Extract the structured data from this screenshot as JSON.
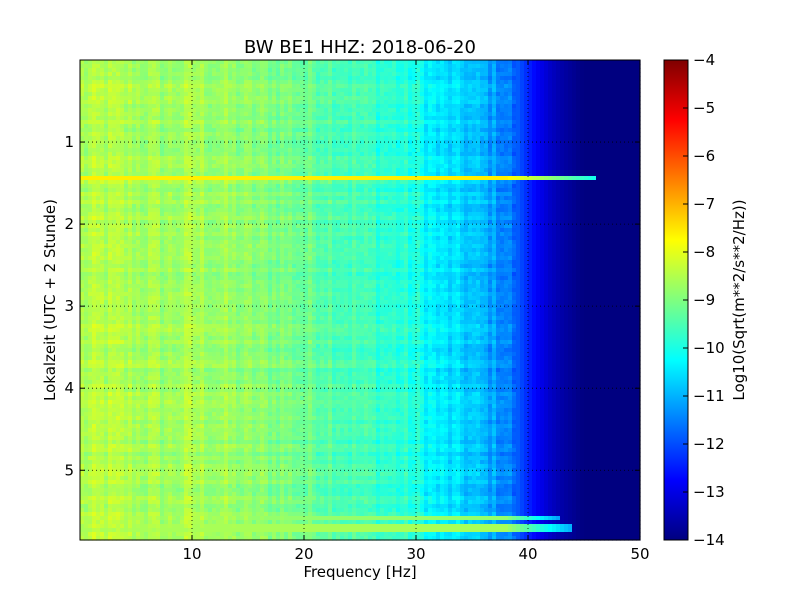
{
  "chart_data": {
    "type": "heatmap",
    "title": "BW BE1 HHZ: 2018-06-20",
    "xlabel": "Frequency [Hz]",
    "ylabel": "Lokalzeit (UTC + 2 Stunde)",
    "xlim": [
      0,
      50
    ],
    "ylim": [
      5.85,
      0.0
    ],
    "x_ticks": [
      10,
      20,
      30,
      40,
      50
    ],
    "x_tick_labels": [
      "10",
      "20",
      "30",
      "40",
      "50"
    ],
    "y_ticks": [
      1,
      2,
      3,
      4,
      5
    ],
    "y_tick_labels": [
      "1",
      "2",
      "3",
      "4",
      "5"
    ],
    "grid": true,
    "colormap": "jet",
    "colorbar": {
      "label": "Log10(Sqrt(m**2/s**2/Hz))",
      "range": [
        -14,
        -4
      ],
      "ticks": [
        -4,
        -5,
        -6,
        -7,
        -8,
        -9,
        -10,
        -11,
        -12,
        -13,
        -14
      ],
      "tick_labels": [
        "−4",
        "−5",
        "−6",
        "−7",
        "−8",
        "−9",
        "−10",
        "−11",
        "−12",
        "−13",
        "−14"
      ],
      "colors": [
        "#00007f",
        "#0000ff",
        "#007fff",
        "#00ffff",
        "#7fff7f",
        "#ffff00",
        "#ff7f00",
        "#ff0000",
        "#7f0000"
      ]
    },
    "frequency_profile": {
      "frequency_hz": [
        0,
        2,
        5,
        8,
        10,
        12,
        15,
        18,
        20,
        22,
        25,
        28,
        30,
        32,
        34,
        36,
        38,
        39,
        40,
        41,
        42,
        43,
        44,
        45,
        50
      ],
      "log10_amplitude": [
        -8.6,
        -8.5,
        -8.6,
        -8.7,
        -8.6,
        -8.7,
        -8.9,
        -9.0,
        -9.2,
        -9.3,
        -9.6,
        -9.8,
        -10.0,
        -10.5,
        -10.7,
        -11.0,
        -11.4,
        -11.8,
        -12.4,
        -12.9,
        -13.3,
        -13.6,
        -13.8,
        -14.0,
        -14.0
      ]
    },
    "highlighted_lines": [
      {
        "time_h": 1.45,
        "log10_amplitude": -7.6,
        "extends_to_hz": 46
      },
      {
        "time_h": 5.6,
        "log10_amplitude": -8.8,
        "extends_to_hz": 43
      },
      {
        "time_h": 5.7,
        "log10_amplitude": -8.6,
        "extends_to_hz": 44
      }
    ]
  }
}
